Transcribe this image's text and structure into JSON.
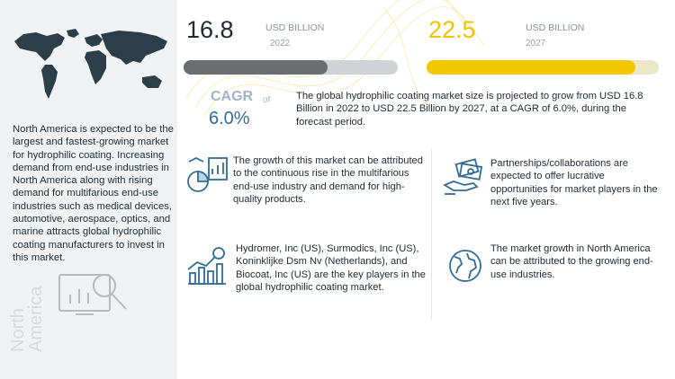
{
  "left_panel": {
    "description": "North America is expected to be the largest and fastest-growing market for hydrophilic coating. Increasing demand from end-use industries in North America along with rising demand for multifarious end-use industries such as medical devices, automotive, aerospace, optics, and marine attracts global hydrophilic coating manufacturers to invest in this market.",
    "region_label": "North America",
    "icons": [
      "world-map-icon",
      "analysis-chart-icon"
    ]
  },
  "chart_data": {
    "type": "bar",
    "categories": [
      "2022",
      "2027"
    ],
    "values": [
      16.8,
      22.5
    ],
    "unit": "USD BILLION",
    "colors": [
      "#6b6e70",
      "#f4c800"
    ],
    "xlim": [
      0,
      25
    ],
    "cagr_label": "CAGR",
    "cagr_value": "6.0%",
    "connector": "of"
  },
  "summary": "The global hydrophilic coating market size is projected to grow from USD 16.8 Billion in 2022 to USD 22.5 Billion by 2027, at a CAGR of 6.0%, during the forecast period.",
  "points": [
    {
      "icon": "industry-growth-icon",
      "text": "The growth of this market can be attributed to the continuous rise in the multifarious end-use industry and demand for high-quality products."
    },
    {
      "icon": "partnership-money-icon",
      "text": "Partnerships/collaborations are expected to offer lucrative opportunities for market players in the next five years."
    },
    {
      "icon": "key-players-chart-icon",
      "text": "Hydromer, Inc (US), Surmodics, Inc (US), Koninklijke Dsm Nv (Netherlands),  and Biocoat, Inc (US) are the key players in the global hydrophilic coating market."
    },
    {
      "icon": "globe-icon",
      "text": "The market growth in North America can be attributed to the growing end-use industries."
    }
  ]
}
